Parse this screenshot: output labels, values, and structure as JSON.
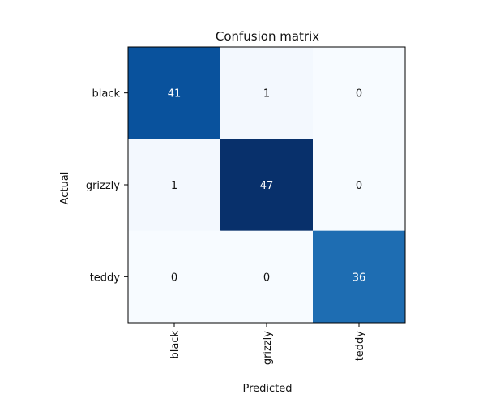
{
  "chart_data": {
    "type": "heatmap",
    "title": "Confusion matrix",
    "xlabel": "Predicted",
    "ylabel": "Actual",
    "x_categories": [
      "black",
      "grizzly",
      "teddy"
    ],
    "y_categories": [
      "black",
      "grizzly",
      "teddy"
    ],
    "values": [
      [
        41,
        1,
        0
      ],
      [
        1,
        47,
        0
      ],
      [
        0,
        0,
        36
      ]
    ],
    "colormap": "Blues",
    "color_range": [
      0,
      47
    ]
  }
}
